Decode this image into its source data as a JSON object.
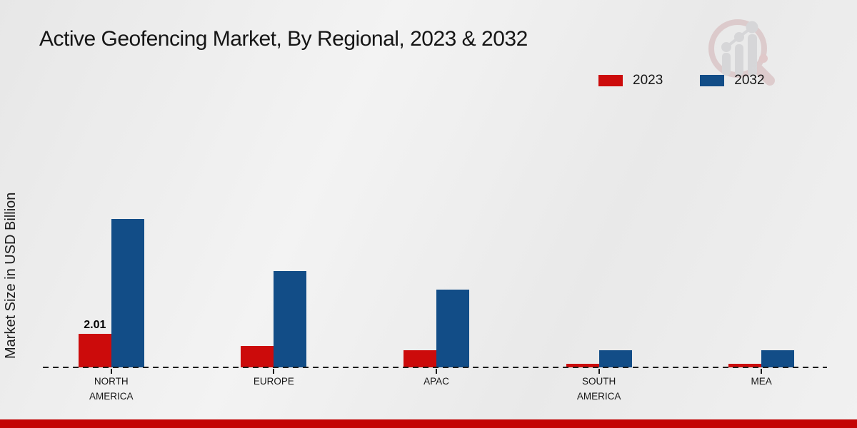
{
  "title": "Active Geofencing Market, By Regional, 2023 & 2032",
  "ylabel": "Market Size in USD Billion",
  "watermark_name": "market-research-future-logo",
  "colors": {
    "series_2023": "#cc0b0b",
    "series_2032": "#124d87",
    "footer_bar": "#c30505",
    "baseline": "#1c1c1c",
    "background": "#ededed",
    "watermark_ring": "#d2b2b4",
    "watermark_bars": "#c7c7cb"
  },
  "chart_data": {
    "type": "bar",
    "title": "Active Geofencing Market, By Regional, 2023 & 2032",
    "xlabel": "",
    "ylabel": "Market Size in USD Billion",
    "categories": [
      "NORTH AMERICA",
      "EUROPE",
      "APAC",
      "SOUTH AMERICA",
      "MEA"
    ],
    "series": [
      {
        "name": "2023",
        "color": "#cc0b0b",
        "values": [
          2.01,
          1.3,
          1.05,
          0.22,
          0.21
        ]
      },
      {
        "name": "2032",
        "color": "#124d87",
        "values": [
          8.95,
          5.79,
          4.67,
          1.02,
          1.05
        ]
      }
    ],
    "annotations": [
      {
        "text": "2.01",
        "series_index": 0,
        "category_index": 0
      }
    ],
    "ylim": [
      0,
      9.3
    ],
    "grid": false,
    "legend_position": "top-right",
    "baseline_style": "dashed",
    "y_ticks_shown": false
  }
}
